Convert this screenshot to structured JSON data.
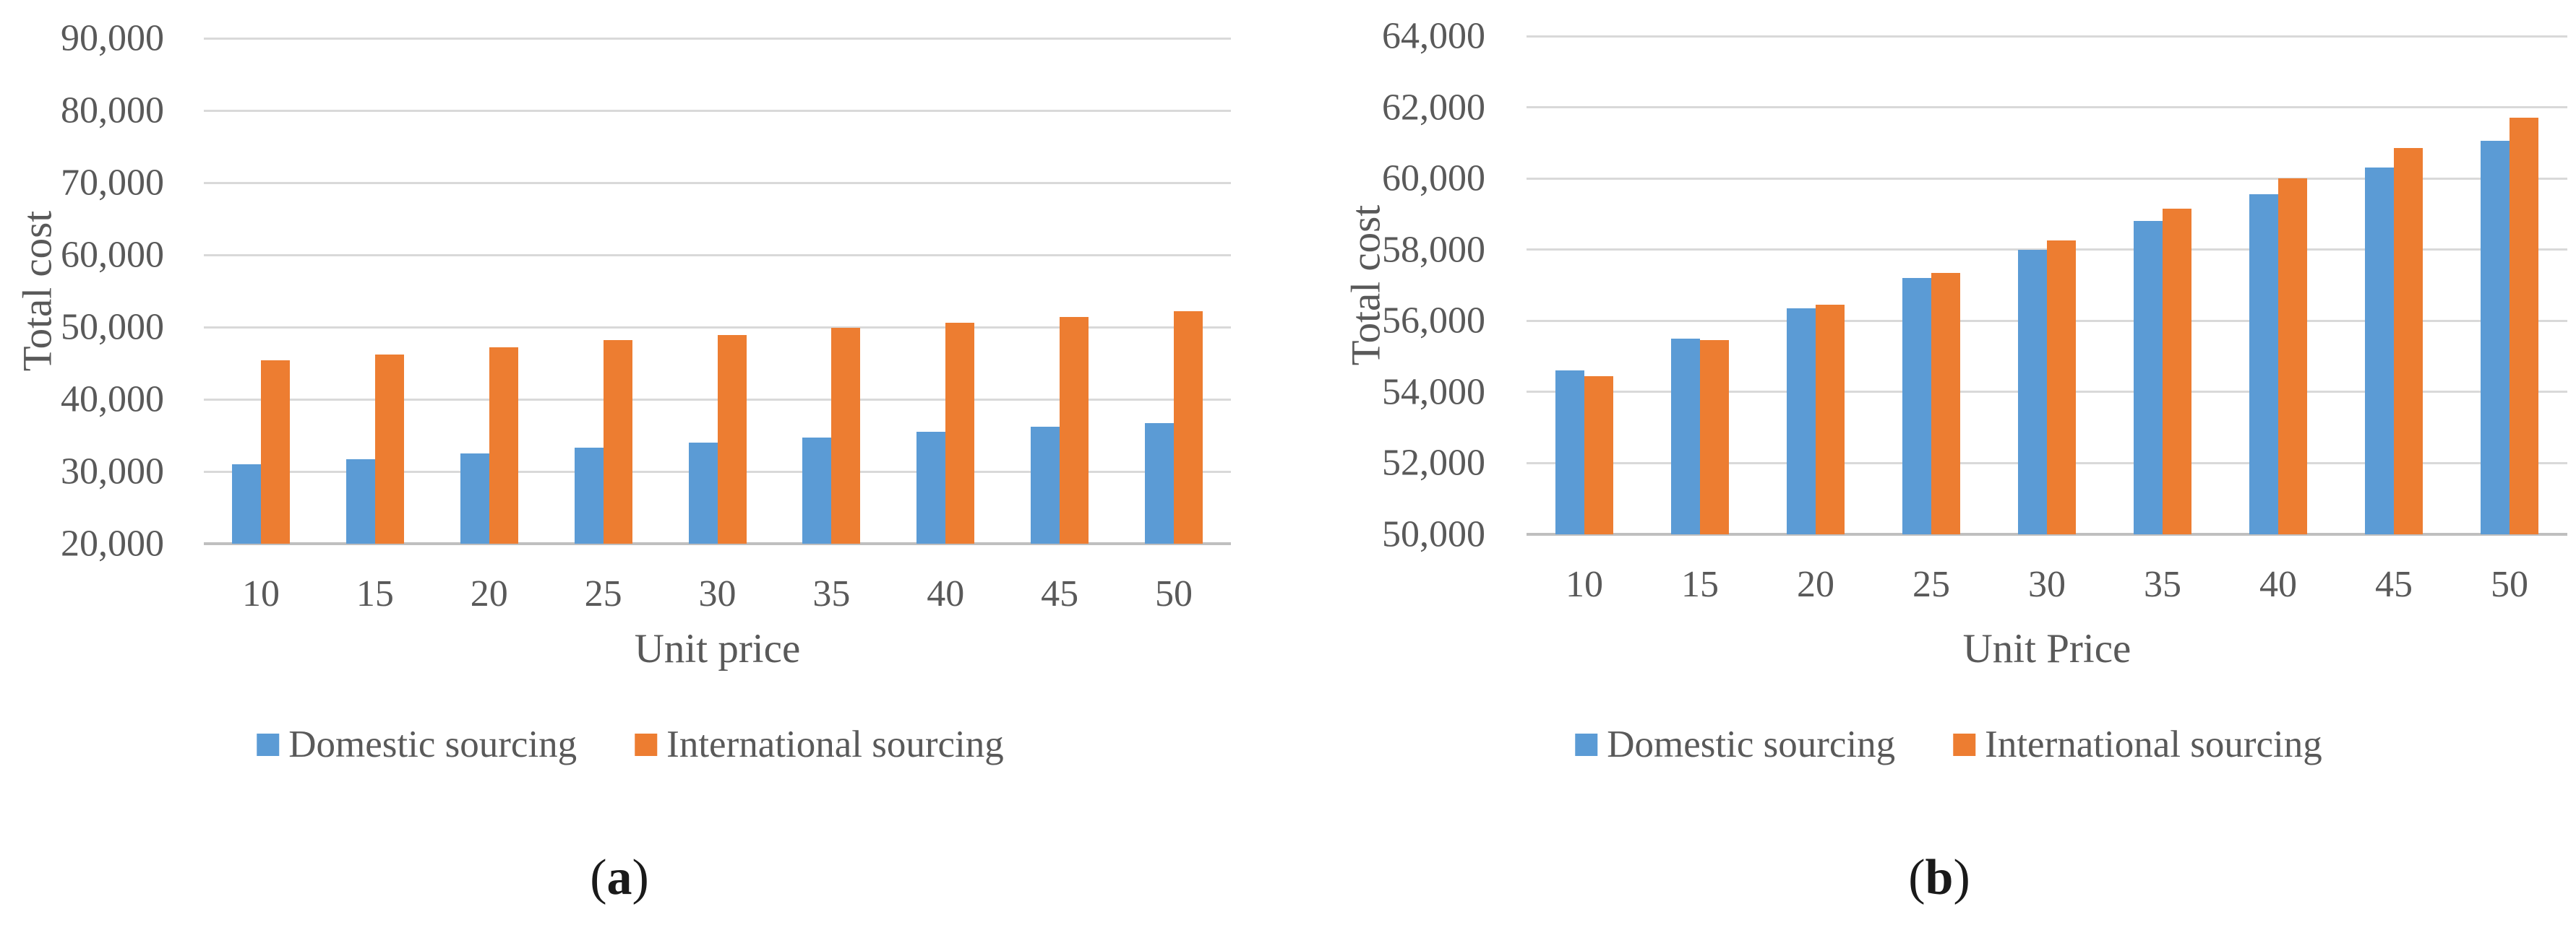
{
  "figure": {
    "series_colors": [
      "#5B9BD5",
      "#ED7D31"
    ],
    "text_color": "#595959",
    "gridline_color": "#D9D9D9",
    "axisline_color": "#BFBFBF"
  },
  "chart_data": [
    {
      "type": "bar",
      "caption": {
        "open": "(",
        "letter": "a",
        "close": ")"
      },
      "xlabel": "Unit price",
      "ylabel": "Total cost",
      "categories": [
        "10",
        "15",
        "20",
        "25",
        "30",
        "35",
        "40",
        "45",
        "50"
      ],
      "series": [
        {
          "name": "Domestic sourcing",
          "values": [
            31000,
            31700,
            32500,
            33300,
            34000,
            34700,
            35500,
            36200,
            36700
          ]
        },
        {
          "name": "International sourcing",
          "values": [
            45400,
            46200,
            47200,
            48200,
            48900,
            49900,
            50600,
            51400,
            52200
          ]
        }
      ],
      "ylim": [
        20000,
        90000
      ],
      "ytick_step": 10000,
      "grid": true,
      "legend_position": "bottom"
    },
    {
      "type": "bar",
      "caption": {
        "open": "(",
        "letter": "b",
        "close": ")"
      },
      "xlabel": "Unit Price",
      "ylabel": "Total cost",
      "categories": [
        "10",
        "15",
        "20",
        "25",
        "30",
        "35",
        "40",
        "45",
        "50"
      ],
      "series": [
        {
          "name": "Domestic sourcing",
          "values": [
            54600,
            55500,
            56350,
            57200,
            58000,
            58800,
            59550,
            60300,
            61050
          ]
        },
        {
          "name": "International sourcing",
          "values": [
            54450,
            55450,
            56450,
            57350,
            58250,
            59150,
            60000,
            60850,
            61700
          ]
        }
      ],
      "ylim": [
        50000,
        64000
      ],
      "ytick_step": 2000,
      "grid": true,
      "legend_position": "bottom"
    }
  ]
}
